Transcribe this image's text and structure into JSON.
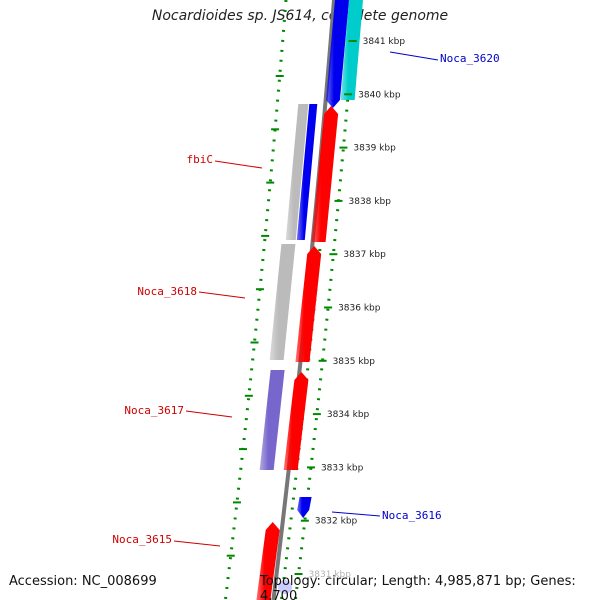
{
  "title": "Nocardioides sp. JS614, complete genome",
  "footer": {
    "accession": "Accession: NC_008699",
    "topology": "Topology: circular; Length: 4,985,871 bp; Genes: 4,700"
  },
  "colors": {
    "forward_gene": "#ff0000",
    "reverse_gene": "#0000ee",
    "cyan_gene": "#00cccc",
    "purple_gene": "#7766cc",
    "gray_gene": "#bbbbbb",
    "backbone": "#777777",
    "tick_dots": "#008800",
    "label_red": "#cc0000",
    "label_blue": "#0000cc"
  },
  "scale": {
    "ticks": [
      "3841 kbp",
      "3840 kbp",
      "3839 kbp",
      "3838 kbp",
      "3837 kbp",
      "3836 kbp",
      "3835 kbp",
      "3834 kbp",
      "3833 kbp",
      "3832 kbp",
      "3831 kbp"
    ]
  },
  "gene_labels": [
    {
      "name": "Noca_3620",
      "color": "blue"
    },
    {
      "name": "fbiC",
      "color": "red"
    },
    {
      "name": "Noca_3618",
      "color": "red"
    },
    {
      "name": "Noca_3617",
      "color": "red"
    },
    {
      "name": "Noca_3616",
      "color": "blue"
    },
    {
      "name": "Noca_3615",
      "color": "red"
    }
  ]
}
